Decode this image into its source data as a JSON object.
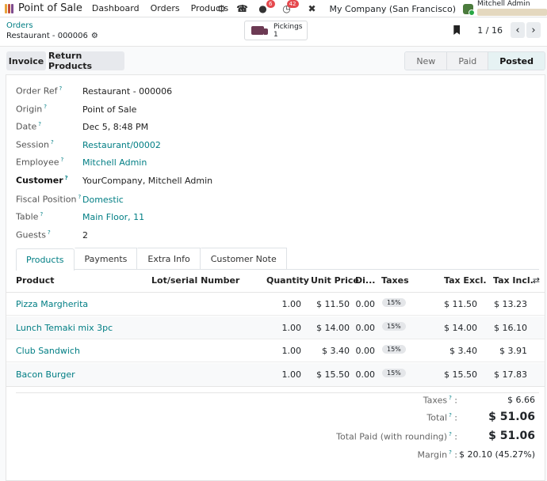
{
  "navbar": {
    "app_name": "Point of Sale",
    "menu": [
      "Dashboard",
      "Orders",
      "Products"
    ],
    "plus": "+",
    "chat_badge": "6",
    "activity_badge": "42",
    "company": "My Company (San Francisco)",
    "user": "Mitchell Admin",
    "app_icon_colors": [
      "#e8a33a",
      "#c44d3b",
      "#7e4a8c"
    ]
  },
  "breadcrumb": {
    "parent": "Orders",
    "current": "Restaurant - 000006"
  },
  "smart_button": {
    "label": "Pickings",
    "count": "1"
  },
  "pager": {
    "text": "1 / 16"
  },
  "actions": {
    "invoice": "Invoice",
    "return_products": "Return Products"
  },
  "statusbar": {
    "states": [
      "New",
      "Paid",
      "Posted"
    ],
    "active": "Posted"
  },
  "fields": [
    {
      "label": "Order Ref",
      "value": "Restaurant - 000006",
      "help": true,
      "link": false,
      "bold": false
    },
    {
      "label": "Origin",
      "value": "Point of Sale",
      "help": true,
      "link": false,
      "bold": false
    },
    {
      "label": "Date",
      "value": "Dec 5, 8:48 PM",
      "help": true,
      "link": false,
      "bold": false
    },
    {
      "label": "Session",
      "value": "Restaurant/00002",
      "help": true,
      "link": true,
      "bold": false
    },
    {
      "label": "Employee",
      "value": "Mitchell Admin",
      "help": true,
      "link": true,
      "bold": false
    },
    {
      "label": "Customer",
      "value": "YourCompany, Mitchell Admin",
      "help": true,
      "link": false,
      "bold": true
    },
    {
      "label": "Fiscal Position",
      "value": "Domestic",
      "help": true,
      "link": true,
      "bold": false
    },
    {
      "label": "Table",
      "value": "Main Floor, 11",
      "help": true,
      "link": true,
      "bold": false
    },
    {
      "label": "Guests",
      "value": "2",
      "help": true,
      "link": false,
      "bold": false
    }
  ],
  "tabs": [
    "Products",
    "Payments",
    "Extra Info",
    "Customer Note"
  ],
  "table": {
    "headers": {
      "product": "Product",
      "lot": "Lot/serial Number",
      "qty": "Quantity",
      "price": "Unit Price",
      "disc": "Di...",
      "taxes": "Taxes",
      "excl": "Tax Excl.",
      "incl": "Tax Incl."
    },
    "rows": [
      {
        "product": "Pizza Margherita",
        "qty": "1.00",
        "price": "$ 11.50",
        "disc": "0.00",
        "tax": "15%",
        "excl": "$ 11.50",
        "incl": "$ 13.23"
      },
      {
        "product": "Lunch Temaki mix 3pc",
        "qty": "1.00",
        "price": "$ 14.00",
        "disc": "0.00",
        "tax": "15%",
        "excl": "$ 14.00",
        "incl": "$ 16.10"
      },
      {
        "product": "Club Sandwich",
        "qty": "1.00",
        "price": "$ 3.40",
        "disc": "0.00",
        "tax": "15%",
        "excl": "$ 3.40",
        "incl": "$ 3.91"
      },
      {
        "product": "Bacon Burger",
        "qty": "1.00",
        "price": "$ 15.50",
        "disc": "0.00",
        "tax": "15%",
        "excl": "$ 15.50",
        "incl": "$ 17.83"
      }
    ]
  },
  "totals": {
    "taxes_label": "Taxes",
    "taxes_value": "$ 6.66",
    "total_label": "Total",
    "total_value": "$ 51.06",
    "paid_label": "Total Paid (with rounding)",
    "paid_value": "$ 51.06",
    "margin_label": "Margin",
    "margin_value": "$ 20.10 (45.27%)"
  }
}
